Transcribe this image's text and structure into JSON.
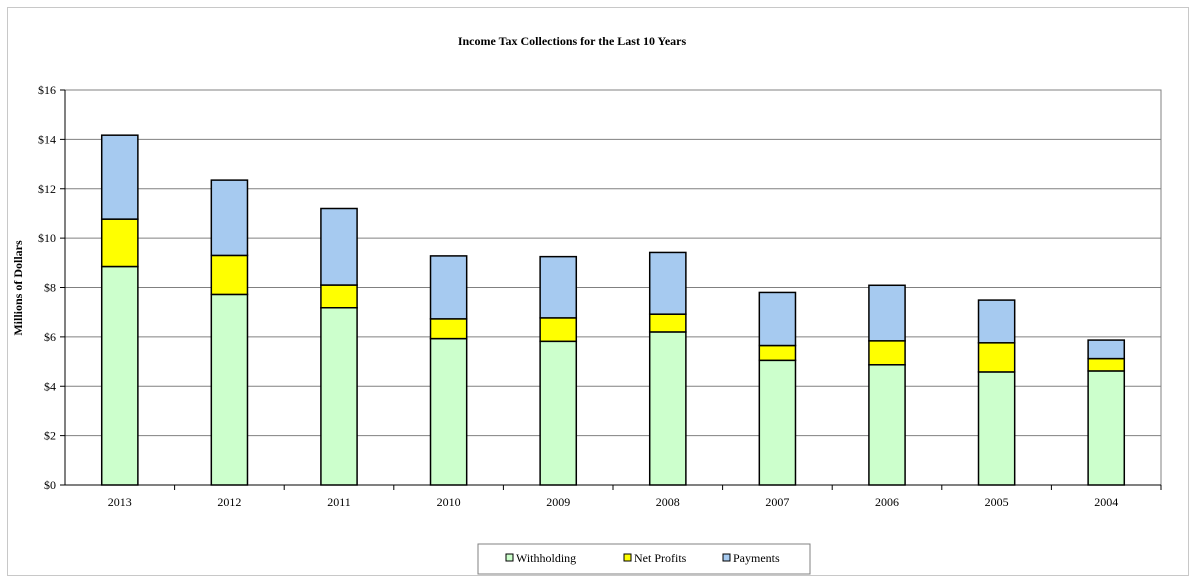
{
  "chart_data": {
    "type": "bar",
    "stacked": true,
    "title": "Income Tax Collections for the Last 10 Years",
    "ylabel": "Millions of Dollars",
    "xlabel": "",
    "ylim": [
      0,
      16
    ],
    "ytick_step": 2,
    "ytick_labels": [
      "$0",
      "$2",
      "$4",
      "$6",
      "$8",
      "$10",
      "$12",
      "$14",
      "$16"
    ],
    "grid": true,
    "legend_position": "bottom-center",
    "categories": [
      "2013",
      "2012",
      "2011",
      "2010",
      "2009",
      "2008",
      "2007",
      "2006",
      "2005",
      "2004"
    ],
    "series": [
      {
        "name": "Withholding",
        "color": "#ccffcc",
        "values": [
          8.85,
          7.72,
          7.18,
          5.93,
          5.82,
          6.2,
          5.05,
          4.87,
          4.58,
          4.62
        ]
      },
      {
        "name": "Net Profits",
        "color": "#ffff00",
        "values": [
          1.92,
          1.58,
          0.92,
          0.8,
          0.95,
          0.72,
          0.6,
          0.97,
          1.18,
          0.5
        ]
      },
      {
        "name": "Payments",
        "color": "#a6caf0",
        "values": [
          3.4,
          3.05,
          3.1,
          2.55,
          2.48,
          2.5,
          2.15,
          2.25,
          1.73,
          0.75
        ]
      }
    ]
  }
}
